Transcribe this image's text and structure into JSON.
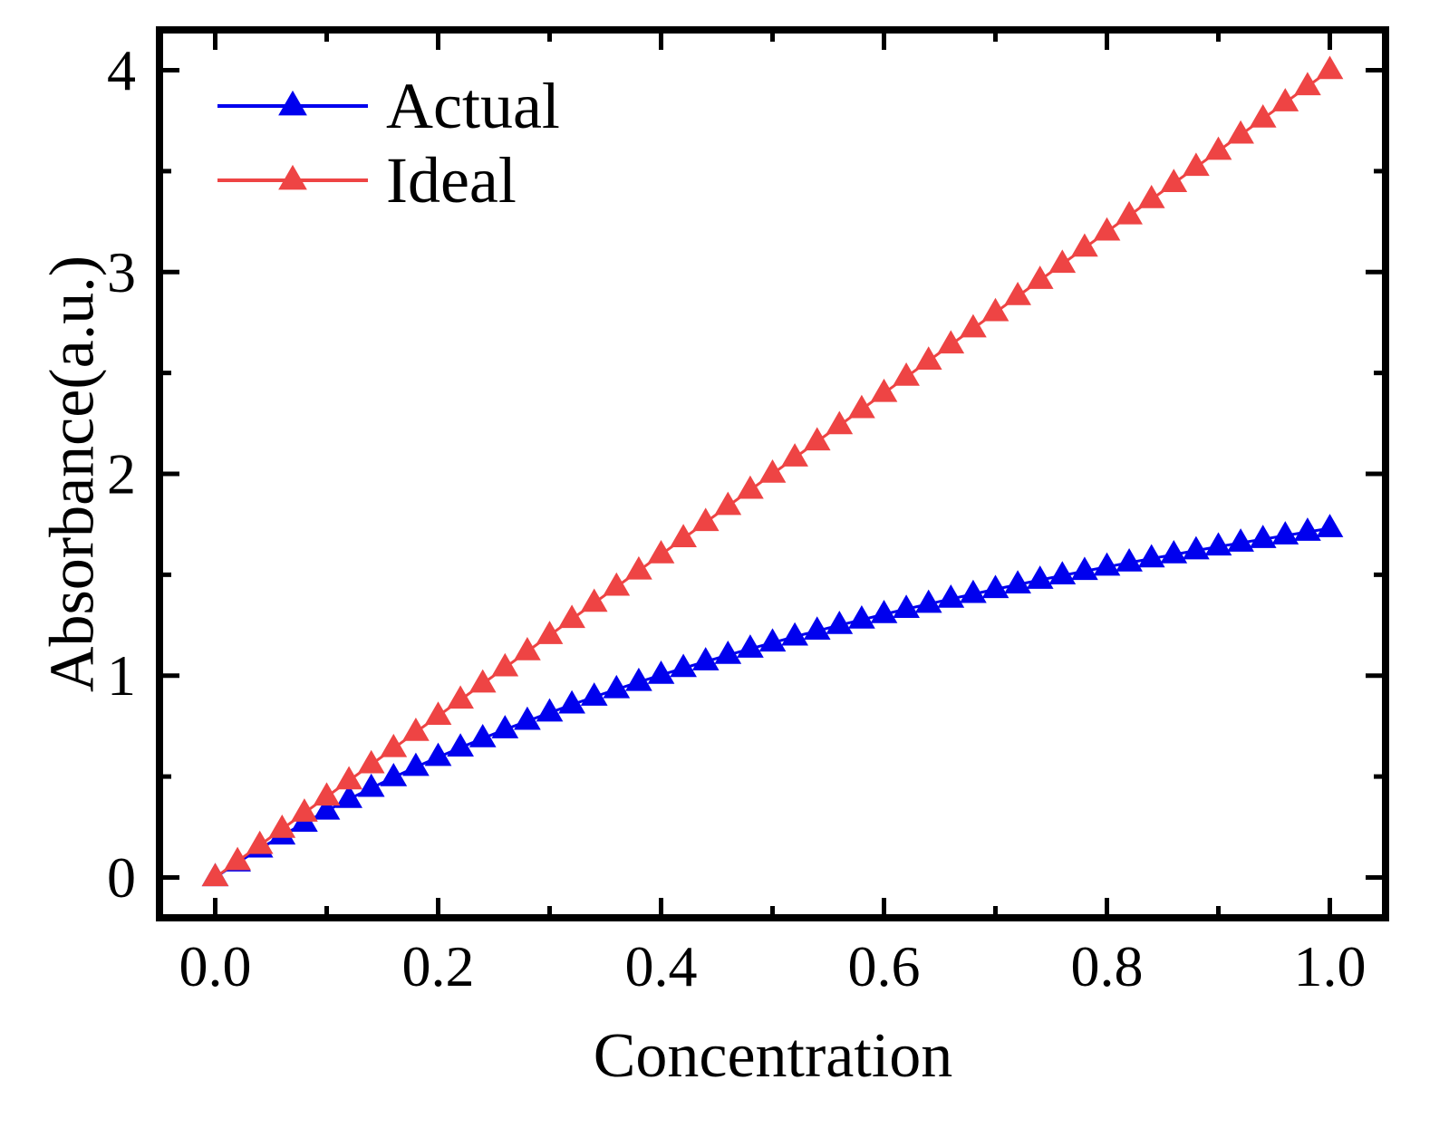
{
  "chart_data": {
    "type": "line",
    "xlabel": "Concentration",
    "ylabel": "Absorbance(a.u.)",
    "xlim": [
      -0.05,
      1.05
    ],
    "ylim": [
      -0.2,
      4.2
    ],
    "xticks": [
      0.0,
      0.2,
      0.4,
      0.6,
      0.8,
      1.0
    ],
    "xtick_labels": [
      "0.0",
      "0.2",
      "0.4",
      "0.6",
      "0.8",
      "1.0"
    ],
    "yticks": [
      0,
      1,
      2,
      3,
      4
    ],
    "ytick_labels": [
      "0",
      "1",
      "2",
      "3",
      "4"
    ],
    "x_minor_step": 0.1,
    "y_minor_step": 0.5,
    "legend_position": "top-left",
    "marker": "triangle",
    "x": [
      0.0,
      0.02,
      0.04,
      0.06,
      0.08,
      0.1,
      0.12,
      0.14,
      0.16,
      0.18,
      0.2,
      0.22,
      0.24,
      0.26,
      0.28,
      0.3,
      0.32,
      0.34,
      0.36,
      0.38,
      0.4,
      0.42,
      0.44,
      0.46,
      0.48,
      0.5,
      0.52,
      0.54,
      0.56,
      0.58,
      0.6,
      0.62,
      0.64,
      0.66,
      0.68,
      0.7,
      0.72,
      0.74,
      0.76,
      0.78,
      0.8,
      0.82,
      0.84,
      0.86,
      0.88,
      0.9,
      0.92,
      0.94,
      0.96,
      0.98,
      1.0
    ],
    "series": [
      {
        "name": "Actual",
        "color": "#0000ee",
        "values": [
          0.0,
          0.073,
          0.142,
          0.207,
          0.27,
          0.33,
          0.388,
          0.443,
          0.496,
          0.547,
          0.596,
          0.643,
          0.689,
          0.733,
          0.775,
          0.816,
          0.856,
          0.895,
          0.932,
          0.968,
          1.003,
          1.037,
          1.07,
          1.102,
          1.133,
          1.163,
          1.193,
          1.222,
          1.25,
          1.277,
          1.304,
          1.33,
          1.355,
          1.38,
          1.404,
          1.428,
          1.451,
          1.474,
          1.496,
          1.518,
          1.539,
          1.56,
          1.58,
          1.6,
          1.62,
          1.639,
          1.658,
          1.676,
          1.694,
          1.712,
          1.73
        ]
      },
      {
        "name": "Ideal",
        "color": "#ee4444",
        "values": [
          0.0,
          0.08,
          0.16,
          0.24,
          0.32,
          0.4,
          0.48,
          0.56,
          0.64,
          0.72,
          0.8,
          0.88,
          0.96,
          1.04,
          1.12,
          1.2,
          1.28,
          1.36,
          1.44,
          1.52,
          1.6,
          1.68,
          1.76,
          1.84,
          1.92,
          2.0,
          2.08,
          2.16,
          2.24,
          2.32,
          2.4,
          2.48,
          2.56,
          2.64,
          2.72,
          2.8,
          2.88,
          2.96,
          3.04,
          3.12,
          3.2,
          3.28,
          3.36,
          3.44,
          3.52,
          3.6,
          3.68,
          3.76,
          3.84,
          3.92,
          4.0
        ]
      }
    ]
  }
}
